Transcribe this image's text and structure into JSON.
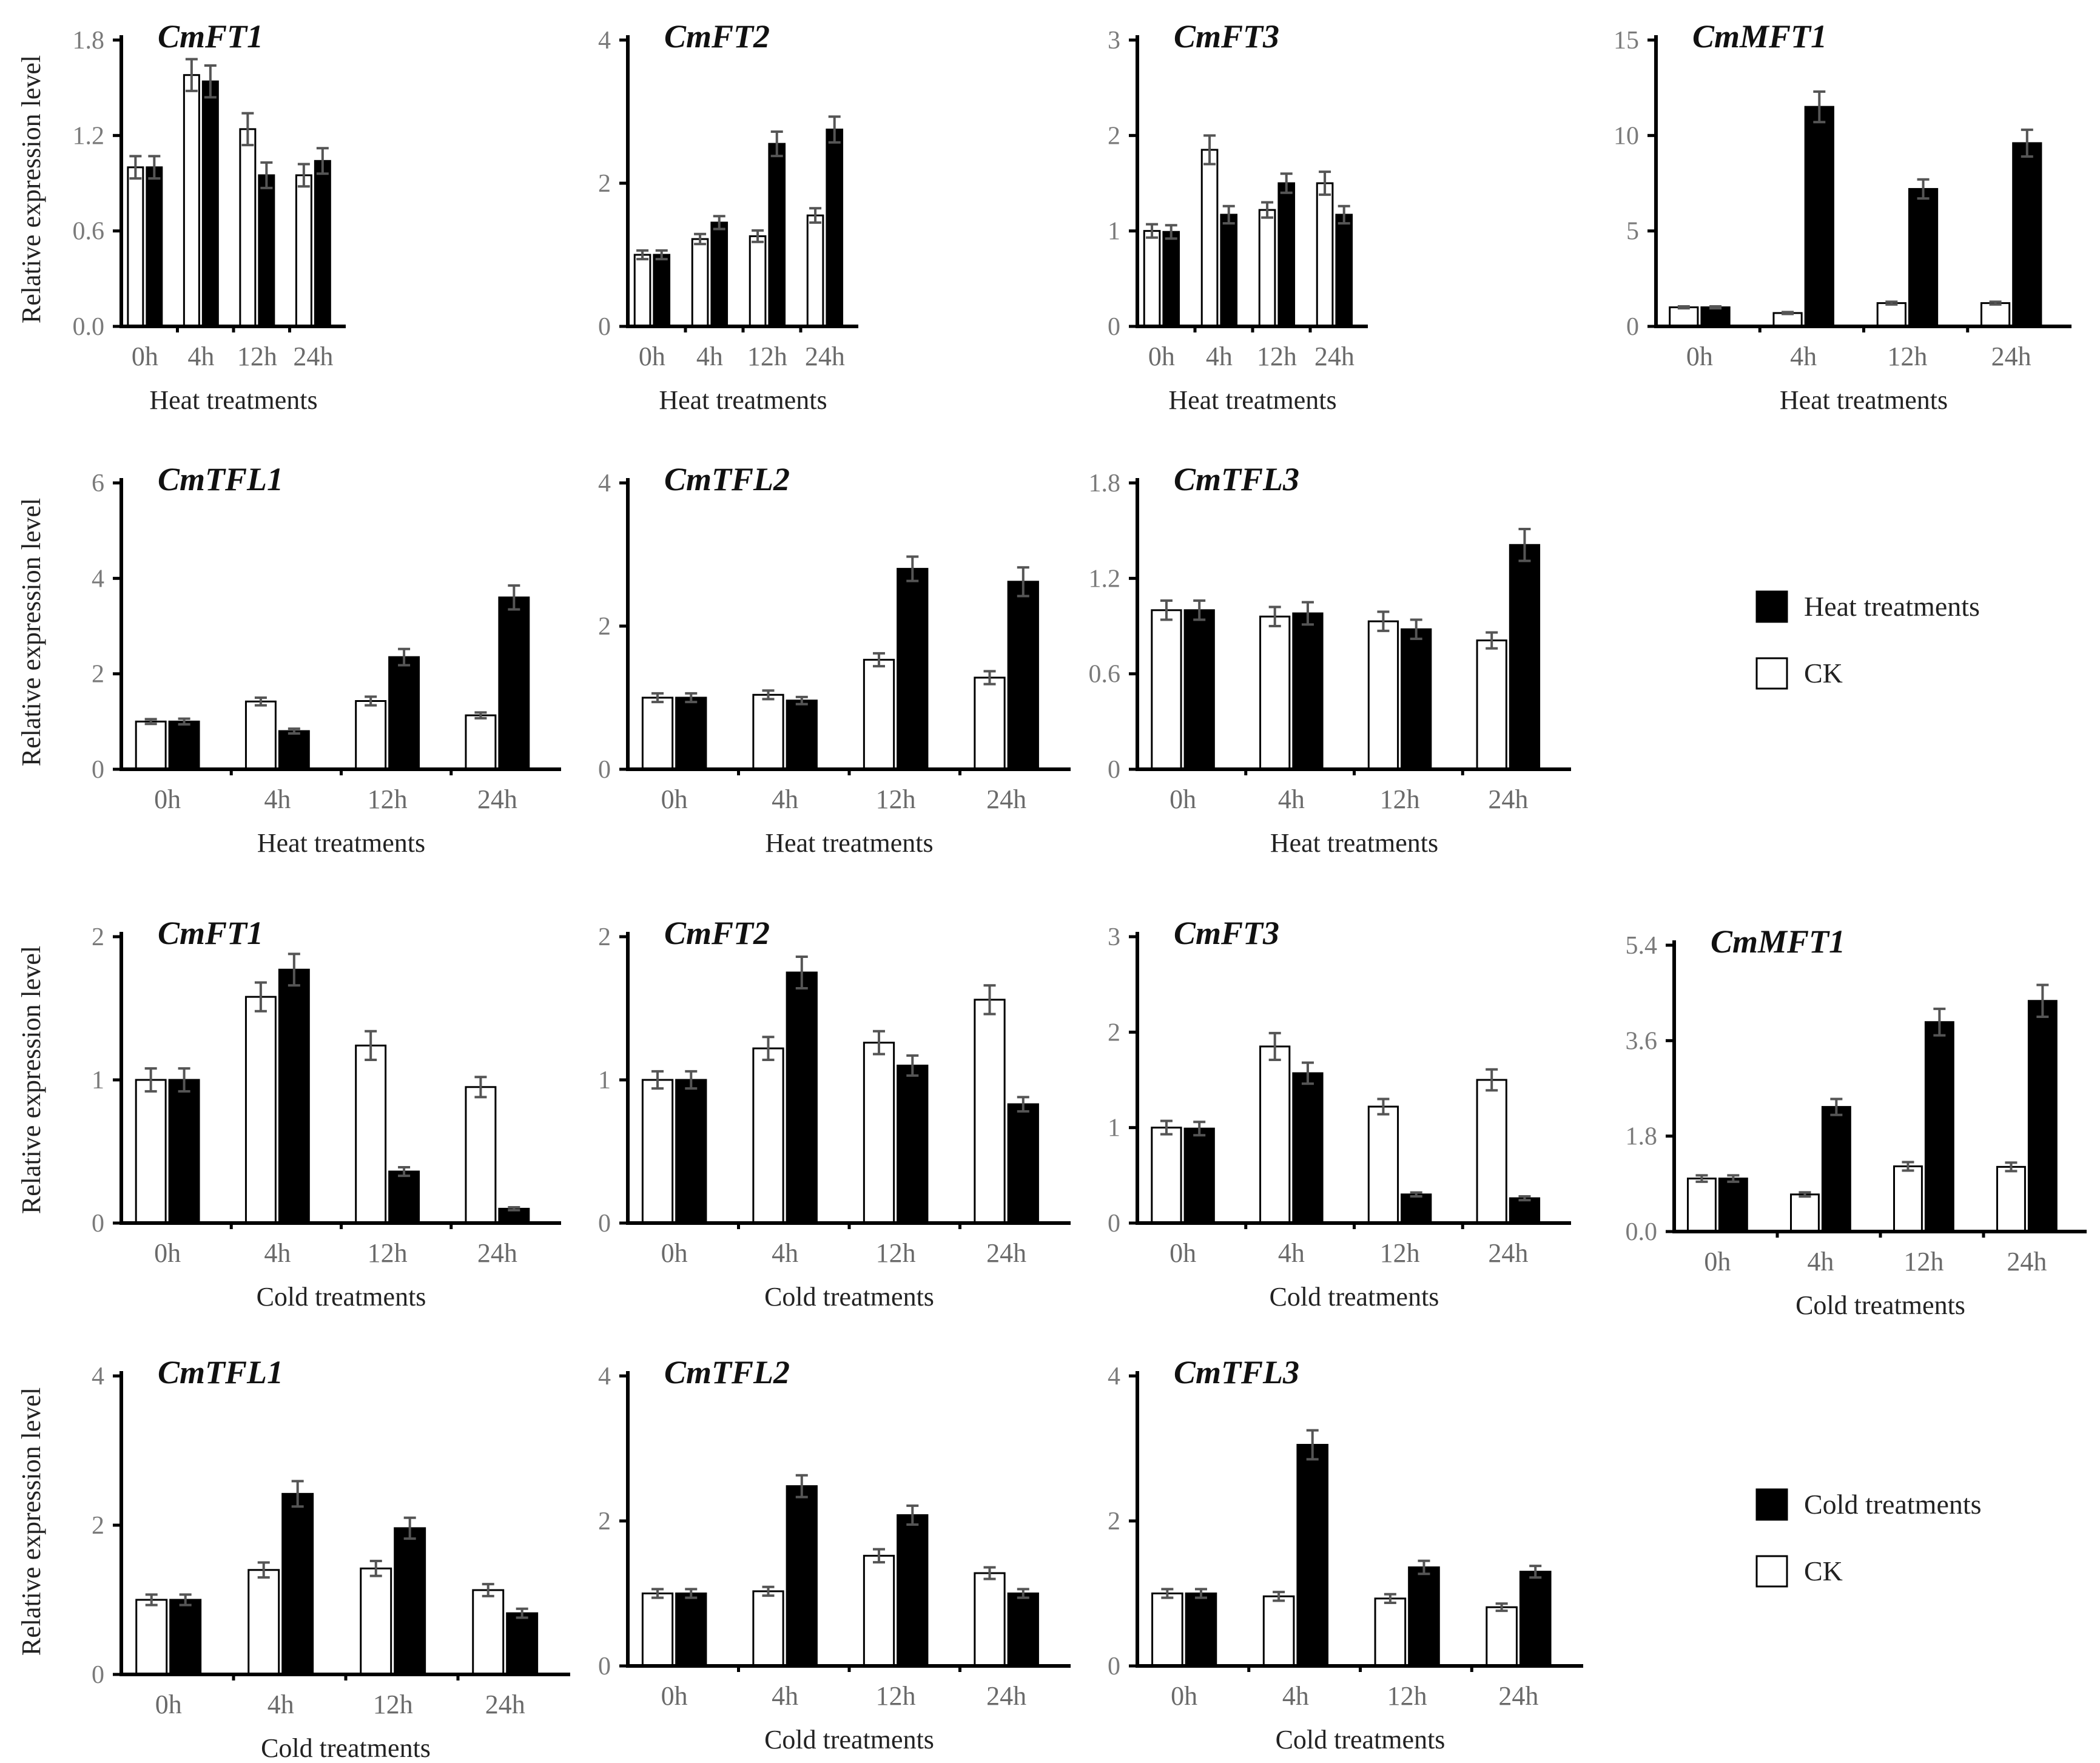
{
  "figure": {
    "y_axis_label": "Relative expression level",
    "colors": {
      "ck": "#ffffff",
      "treatment": "#000000",
      "bar_edge": "#000000"
    }
  },
  "chart_data": [
    {
      "type": "bar",
      "title": "CmFT1",
      "xlabel": "Heat treatments",
      "ylabel": "Relative expression level",
      "categories": [
        "0h",
        "4h",
        "12h",
        "24h"
      ],
      "yticks": [
        "0.0",
        "0.6",
        "1.2",
        "1.8"
      ],
      "ylim": [
        0,
        1.8
      ],
      "series": [
        {
          "name": "CK",
          "values": [
            1.0,
            1.58,
            1.24,
            0.95
          ],
          "errors": [
            0.07,
            0.1,
            0.1,
            0.07
          ]
        },
        {
          "name": "Heat treatments",
          "values": [
            1.0,
            1.54,
            0.95,
            1.04
          ],
          "errors": [
            0.07,
            0.1,
            0.08,
            0.08
          ]
        }
      ]
    },
    {
      "type": "bar",
      "title": "CmFT2",
      "xlabel": "Heat treatments",
      "ylabel": "Relative expression level",
      "categories": [
        "0h",
        "4h",
        "12h",
        "24h"
      ],
      "yticks": [
        "0",
        "2",
        "4"
      ],
      "ylim": [
        0,
        4
      ],
      "series": [
        {
          "name": "CK",
          "values": [
            1.0,
            1.22,
            1.26,
            1.55
          ],
          "errors": [
            0.06,
            0.07,
            0.08,
            0.1
          ]
        },
        {
          "name": "Heat treatments",
          "values": [
            1.0,
            1.45,
            2.55,
            2.75
          ],
          "errors": [
            0.06,
            0.09,
            0.17,
            0.18
          ]
        }
      ]
    },
    {
      "type": "bar",
      "title": "CmFT3",
      "xlabel": "Heat treatments",
      "ylabel": "Relative expression level",
      "categories": [
        "0h",
        "4h",
        "12h",
        "24h"
      ],
      "yticks": [
        "0",
        "1",
        "2",
        "3"
      ],
      "ylim": [
        0,
        3
      ],
      "series": [
        {
          "name": "CK",
          "values": [
            1.0,
            1.85,
            1.22,
            1.5
          ],
          "errors": [
            0.07,
            0.15,
            0.08,
            0.12
          ]
        },
        {
          "name": "Heat treatments",
          "values": [
            0.99,
            1.17,
            1.5,
            1.17
          ],
          "errors": [
            0.07,
            0.09,
            0.1,
            0.09
          ]
        }
      ]
    },
    {
      "type": "bar",
      "title": "CmMFT1",
      "xlabel": "Heat treatments",
      "ylabel": "Relative expression level",
      "categories": [
        "0h",
        "4h",
        "12h",
        "24h"
      ],
      "yticks": [
        "0",
        "5",
        "10",
        "15"
      ],
      "ylim": [
        0,
        15
      ],
      "series": [
        {
          "name": "CK",
          "values": [
            1.0,
            0.7,
            1.22,
            1.22
          ],
          "errors": [
            0.05,
            0.05,
            0.07,
            0.07
          ]
        },
        {
          "name": "Heat treatments",
          "values": [
            1.0,
            11.5,
            7.2,
            9.6
          ],
          "errors": [
            0.05,
            0.8,
            0.5,
            0.7
          ]
        }
      ]
    },
    {
      "type": "bar",
      "title": "CmTFL1",
      "xlabel": "Heat treatments",
      "ylabel": "Relative expression level",
      "categories": [
        "0h",
        "4h",
        "12h",
        "24h"
      ],
      "yticks": [
        "0",
        "2",
        "4",
        "6"
      ],
      "ylim": [
        0,
        6
      ],
      "series": [
        {
          "name": "CK",
          "values": [
            1.0,
            1.42,
            1.43,
            1.13
          ],
          "errors": [
            0.05,
            0.08,
            0.09,
            0.06
          ]
        },
        {
          "name": "Heat treatments",
          "values": [
            1.0,
            0.8,
            2.35,
            3.6
          ],
          "errors": [
            0.06,
            0.05,
            0.17,
            0.25
          ]
        }
      ]
    },
    {
      "type": "bar",
      "title": "CmTFL2",
      "xlabel": "Heat treatments",
      "ylabel": "Relative expression level",
      "categories": [
        "0h",
        "4h",
        "12h",
        "24h"
      ],
      "yticks": [
        "0",
        "2",
        "4"
      ],
      "ylim": [
        0,
        4
      ],
      "series": [
        {
          "name": "CK",
          "values": [
            1.0,
            1.04,
            1.53,
            1.28
          ],
          "errors": [
            0.06,
            0.06,
            0.09,
            0.09
          ]
        },
        {
          "name": "Heat treatments",
          "values": [
            1.0,
            0.96,
            2.8,
            2.62
          ],
          "errors": [
            0.06,
            0.05,
            0.17,
            0.2
          ]
        }
      ]
    },
    {
      "type": "bar",
      "title": "CmTFL3",
      "xlabel": "Heat treatments",
      "ylabel": "Relative expression level",
      "categories": [
        "0h",
        "4h",
        "12h",
        "24h"
      ],
      "yticks": [
        "0",
        "0.6",
        "1.2",
        "1.8"
      ],
      "ylim": [
        0,
        1.8
      ],
      "series": [
        {
          "name": "CK",
          "values": [
            1.0,
            0.96,
            0.93,
            0.81
          ],
          "errors": [
            0.06,
            0.06,
            0.06,
            0.05
          ]
        },
        {
          "name": "Heat treatments",
          "values": [
            1.0,
            0.98,
            0.88,
            1.41
          ],
          "errors": [
            0.06,
            0.07,
            0.06,
            0.1
          ]
        }
      ]
    },
    {
      "type": "bar",
      "title": "CmFT1",
      "xlabel": "Cold treatments",
      "ylabel": "Relative expression level",
      "categories": [
        "0h",
        "4h",
        "12h",
        "24h"
      ],
      "yticks": [
        "0",
        "1",
        "2"
      ],
      "ylim": [
        0,
        2
      ],
      "series": [
        {
          "name": "CK",
          "values": [
            1.0,
            1.58,
            1.24,
            0.95
          ],
          "errors": [
            0.08,
            0.1,
            0.1,
            0.07
          ]
        },
        {
          "name": "Cold treatments",
          "values": [
            1.0,
            1.77,
            0.36,
            0.1
          ],
          "errors": [
            0.08,
            0.11,
            0.03,
            0.01
          ]
        }
      ]
    },
    {
      "type": "bar",
      "title": "CmFT2",
      "xlabel": "Cold treatments",
      "ylabel": "Relative expression level",
      "categories": [
        "0h",
        "4h",
        "12h",
        "24h"
      ],
      "yticks": [
        "0",
        "1",
        "2"
      ],
      "ylim": [
        0,
        2
      ],
      "series": [
        {
          "name": "CK",
          "values": [
            1.0,
            1.22,
            1.26,
            1.56
          ],
          "errors": [
            0.06,
            0.08,
            0.08,
            0.1
          ]
        },
        {
          "name": "Cold treatments",
          "values": [
            1.0,
            1.75,
            1.1,
            0.83
          ],
          "errors": [
            0.06,
            0.11,
            0.07,
            0.05
          ]
        }
      ]
    },
    {
      "type": "bar",
      "title": "CmFT3",
      "xlabel": "Cold treatments",
      "ylabel": "Relative expression level",
      "categories": [
        "0h",
        "4h",
        "12h",
        "24h"
      ],
      "yticks": [
        "0",
        "1",
        "2",
        "3"
      ],
      "ylim": [
        0,
        3
      ],
      "series": [
        {
          "name": "CK",
          "values": [
            1.0,
            1.85,
            1.22,
            1.5
          ],
          "errors": [
            0.07,
            0.14,
            0.08,
            0.11
          ]
        },
        {
          "name": "Cold treatments",
          "values": [
            0.99,
            1.57,
            0.3,
            0.26
          ],
          "errors": [
            0.07,
            0.11,
            0.02,
            0.02
          ]
        }
      ]
    },
    {
      "type": "bar",
      "title": "CmMFT1",
      "xlabel": "Cold treatments",
      "ylabel": "Relative expression level",
      "categories": [
        "0h",
        "4h",
        "12h",
        "24h"
      ],
      "yticks": [
        "0.0",
        "1.8",
        "3.6",
        "5.4"
      ],
      "ylim": [
        0,
        5.4
      ],
      "series": [
        {
          "name": "CK",
          "values": [
            1.0,
            0.7,
            1.23,
            1.22
          ],
          "errors": [
            0.06,
            0.04,
            0.08,
            0.08
          ]
        },
        {
          "name": "Cold treatments",
          "values": [
            1.0,
            2.35,
            3.95,
            4.35
          ],
          "errors": [
            0.06,
            0.15,
            0.25,
            0.3
          ]
        }
      ]
    },
    {
      "type": "bar",
      "title": "CmTFL1",
      "xlabel": "Cold treatments",
      "ylabel": "Relative expression level",
      "categories": [
        "0h",
        "4h",
        "12h",
        "24h"
      ],
      "yticks": [
        "0",
        "2",
        "4"
      ],
      "ylim": [
        0,
        4
      ],
      "series": [
        {
          "name": "CK",
          "values": [
            1.0,
            1.4,
            1.42,
            1.13
          ],
          "errors": [
            0.07,
            0.1,
            0.1,
            0.08
          ]
        },
        {
          "name": "Cold treatments",
          "values": [
            1.0,
            2.42,
            1.96,
            0.82
          ],
          "errors": [
            0.07,
            0.17,
            0.14,
            0.06
          ]
        }
      ]
    },
    {
      "type": "bar",
      "title": "CmTFL2",
      "xlabel": "Cold treatments",
      "ylabel": "Relative expression level",
      "categories": [
        "0h",
        "4h",
        "12h",
        "24h"
      ],
      "yticks": [
        "0",
        "2",
        "4"
      ],
      "ylim": [
        0,
        4
      ],
      "series": [
        {
          "name": "CK",
          "values": [
            1.0,
            1.03,
            1.52,
            1.28
          ],
          "errors": [
            0.06,
            0.06,
            0.09,
            0.08
          ]
        },
        {
          "name": "Cold treatments",
          "values": [
            1.0,
            2.48,
            2.08,
            1.0
          ],
          "errors": [
            0.06,
            0.15,
            0.13,
            0.06
          ]
        }
      ]
    },
    {
      "type": "bar",
      "title": "CmTFL3",
      "xlabel": "Cold treatments",
      "ylabel": "Relative expression level",
      "categories": [
        "0h",
        "4h",
        "12h",
        "24h"
      ],
      "yticks": [
        "0",
        "2",
        "4"
      ],
      "ylim": [
        0,
        4
      ],
      "series": [
        {
          "name": "CK",
          "values": [
            1.0,
            0.96,
            0.93,
            0.81
          ],
          "errors": [
            0.06,
            0.06,
            0.06,
            0.05
          ]
        },
        {
          "name": "Cold treatments",
          "values": [
            1.0,
            3.05,
            1.36,
            1.3
          ],
          "errors": [
            0.06,
            0.2,
            0.09,
            0.08
          ]
        }
      ]
    }
  ],
  "legends": [
    {
      "entries": [
        {
          "label": "Heat treatments",
          "swatch": "treatment"
        },
        {
          "label": "CK",
          "swatch": "ck"
        }
      ]
    },
    {
      "entries": [
        {
          "label": "Cold treatments",
          "swatch": "treatment"
        },
        {
          "label": "CK",
          "swatch": "ck"
        }
      ]
    }
  ]
}
